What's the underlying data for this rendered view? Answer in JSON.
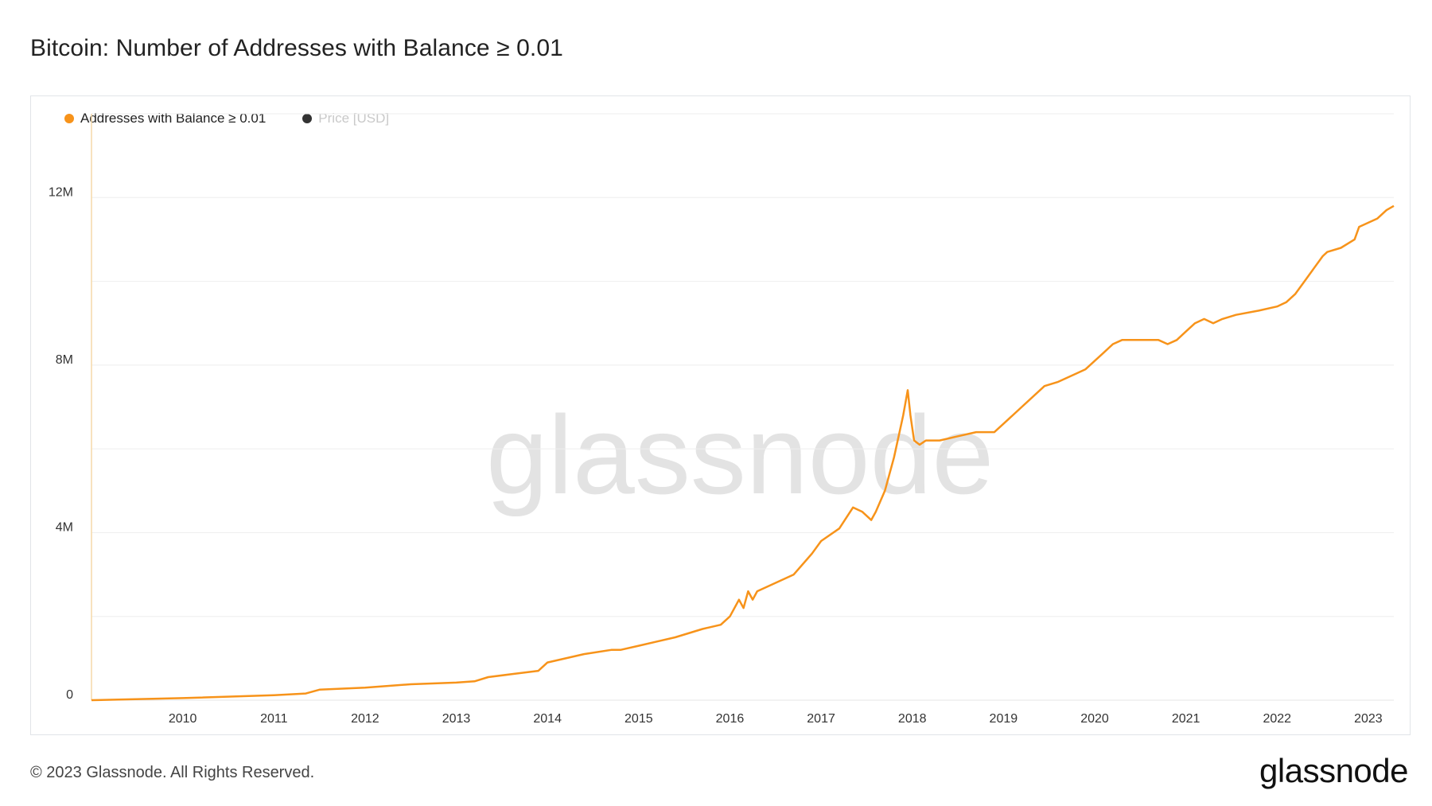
{
  "title": "Bitcoin: Number of Addresses with Balance ≥ 0.01",
  "legend": {
    "series_label": "Addresses with Balance ≥ 0.01",
    "price_label": "Price [USD]"
  },
  "watermark": "glassnode",
  "footer": {
    "copyright": "© 2023 Glassnode. All Rights Reserved."
  },
  "logo": "glassnode",
  "colors": {
    "series": "#f7931a",
    "price_dot": "#333333",
    "grid": "#eeeeee",
    "axis": "#f5d9a8"
  },
  "chart_data": {
    "type": "line",
    "title": "Bitcoin: Number of Addresses with Balance ≥ 0.01",
    "xlabel": "",
    "ylabel": "",
    "x_tick_labels": [
      "2010",
      "2011",
      "2012",
      "2013",
      "2014",
      "2015",
      "2016",
      "2017",
      "2018",
      "2019",
      "2020",
      "2021",
      "2022",
      "2023"
    ],
    "y_tick_labels": [
      "0",
      "4M",
      "8M",
      "12M"
    ],
    "ylim": [
      0,
      14000000
    ],
    "xlim": [
      2009.0,
      2023.28
    ],
    "grid": true,
    "legend_position": "top-left",
    "series": [
      {
        "name": "Addresses with Balance ≥ 0.01",
        "x": [
          2009.0,
          2010.0,
          2011.0,
          2011.35,
          2011.5,
          2011.6,
          2012.0,
          2012.5,
          2013.0,
          2013.2,
          2013.35,
          2013.6,
          2013.9,
          2014.0,
          2014.1,
          2014.4,
          2014.7,
          2014.8,
          2015.0,
          2015.2,
          2015.4,
          2015.7,
          2015.9,
          2016.0,
          2016.1,
          2016.15,
          2016.2,
          2016.25,
          2016.3,
          2016.4,
          2016.7,
          2016.9,
          2017.0,
          2017.2,
          2017.35,
          2017.45,
          2017.55,
          2017.6,
          2017.7,
          2017.8,
          2017.9,
          2017.95,
          2017.98,
          2018.02,
          2018.08,
          2018.15,
          2018.3,
          2018.5,
          2018.7,
          2018.9,
          2019.0,
          2019.2,
          2019.45,
          2019.6,
          2019.7,
          2019.8,
          2019.9,
          2020.1,
          2020.2,
          2020.3,
          2020.5,
          2020.7,
          2020.8,
          2020.9,
          2021.0,
          2021.1,
          2021.2,
          2021.3,
          2021.4,
          2021.55,
          2021.8,
          2022.0,
          2022.1,
          2022.2,
          2022.3,
          2022.4,
          2022.5,
          2022.55,
          2022.7,
          2022.85,
          2022.9,
          2023.0,
          2023.1,
          2023.2,
          2023.28
        ],
        "values": [
          0,
          50000,
          120000,
          160000,
          250000,
          260000,
          300000,
          380000,
          420000,
          450000,
          550000,
          620000,
          700000,
          900000,
          950000,
          1100000,
          1200000,
          1200000,
          1300000,
          1400000,
          1500000,
          1700000,
          1800000,
          2000000,
          2400000,
          2200000,
          2600000,
          2400000,
          2600000,
          2700000,
          3000000,
          3500000,
          3800000,
          4100000,
          4600000,
          4500000,
          4300000,
          4500000,
          5000000,
          5800000,
          6800000,
          7400000,
          6800000,
          6200000,
          6100000,
          6200000,
          6200000,
          6300000,
          6400000,
          6400000,
          6600000,
          7000000,
          7500000,
          7600000,
          7700000,
          7800000,
          7900000,
          8300000,
          8500000,
          8600000,
          8600000,
          8600000,
          8500000,
          8600000,
          8800000,
          9000000,
          9100000,
          9000000,
          9100000,
          9200000,
          9300000,
          9400000,
          9500000,
          9700000,
          10000000,
          10300000,
          10600000,
          10700000,
          10800000,
          11000000,
          11300000,
          11400000,
          11500000,
          11700000,
          11800000
        ]
      }
    ]
  }
}
